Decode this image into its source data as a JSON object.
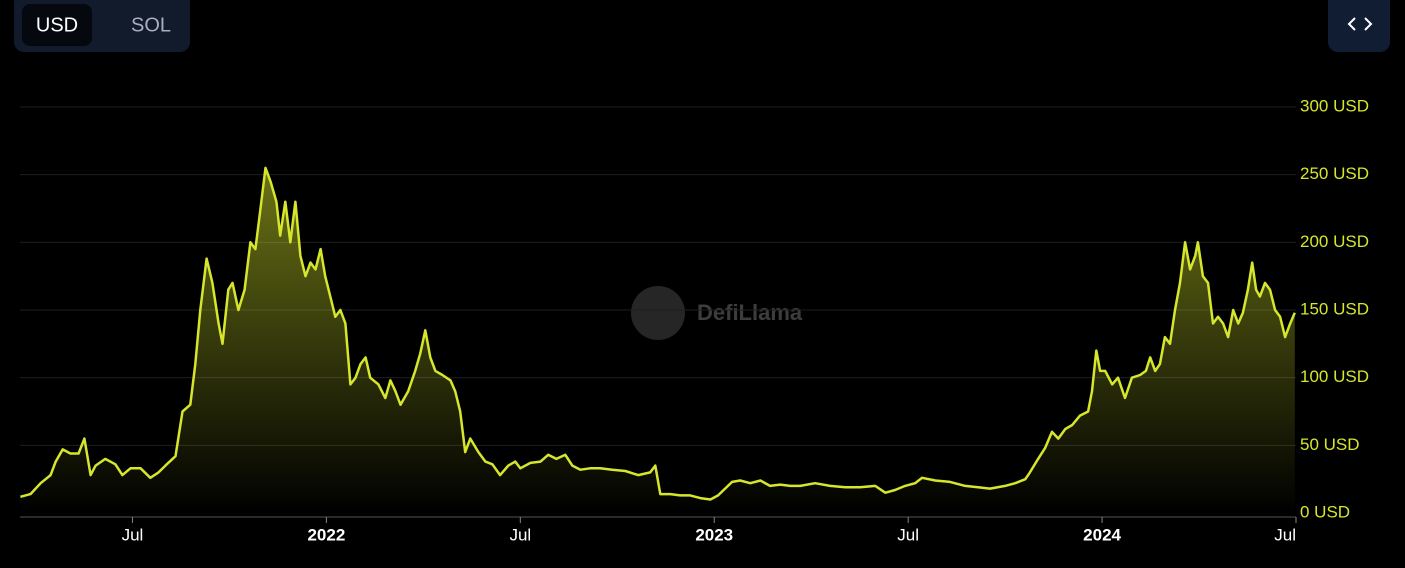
{
  "controls": {
    "currency_options": [
      "USD",
      "SOL"
    ],
    "selected": 0
  },
  "chart_data": {
    "type": "line",
    "watermark": "DefiLlama",
    "color": "#d6e62c",
    "grid": true,
    "xlim": [
      2021.21,
      2024.5
    ],
    "xticks": [
      {
        "value": 2021.5,
        "label": "Jul"
      },
      2022,
      {
        "value": 2022.5,
        "label": "Jul"
      },
      2023,
      {
        "value": 2023.5,
        "label": "Jul"
      },
      2024,
      {
        "value": 2024.5,
        "label": "Jul"
      }
    ],
    "ylim": [
      0,
      300
    ],
    "yticks": [
      {
        "value": 0,
        "label": "0 USD"
      },
      {
        "value": 50,
        "label": "50 USD"
      },
      {
        "value": 100,
        "label": "100 USD"
      },
      {
        "value": 150,
        "label": "150 USD"
      },
      {
        "value": 200,
        "label": "200 USD"
      },
      {
        "value": 250,
        "label": "250 USD"
      },
      {
        "value": 300,
        "label": "300 USD"
      }
    ],
    "x": [
      2021.211,
      2021.237,
      2021.263,
      2021.289,
      2021.302,
      2021.32,
      2021.34,
      2021.361,
      2021.376,
      2021.392,
      2021.405,
      2021.43,
      2021.456,
      2021.474,
      2021.495,
      2021.521,
      2021.546,
      2021.567,
      2021.585,
      2021.611,
      2021.629,
      2021.649,
      2021.662,
      2021.675,
      2021.691,
      2021.706,
      2021.722,
      2021.732,
      2021.747,
      2021.758,
      2021.773,
      2021.789,
      2021.804,
      2021.817,
      2021.83,
      2021.843,
      2021.856,
      2021.871,
      2021.881,
      2021.894,
      2021.907,
      2021.92,
      2021.933,
      2021.946,
      2021.959,
      2021.972,
      2021.985,
      2021.997,
      2022.01,
      2022.023,
      2022.036,
      2022.049,
      2022.062,
      2022.075,
      2022.088,
      2022.101,
      2022.113,
      2022.134,
      2022.152,
      2022.165,
      2022.178,
      2022.191,
      2022.211,
      2022.229,
      2022.242,
      2022.255,
      2022.268,
      2022.281,
      2022.299,
      2022.32,
      2022.332,
      2022.345,
      2022.358,
      2022.371,
      2022.392,
      2022.41,
      2022.428,
      2022.448,
      2022.469,
      2022.487,
      2022.5,
      2022.526,
      2022.552,
      2022.572,
      2022.593,
      2022.616,
      2022.634,
      2022.655,
      2022.68,
      2022.706,
      2022.737,
      2022.771,
      2022.804,
      2022.835,
      2022.848,
      2022.861,
      2022.887,
      2022.912,
      2022.938,
      2022.964,
      2022.99,
      2023.01,
      2023.028,
      2023.046,
      2023.067,
      2023.093,
      2023.119,
      2023.144,
      2023.17,
      2023.196,
      2023.222,
      2023.26,
      2023.299,
      2023.338,
      2023.376,
      2023.415,
      2023.441,
      2023.466,
      2023.492,
      2023.518,
      2023.536,
      2023.57,
      2023.608,
      2023.647,
      2023.68,
      2023.711,
      2023.75,
      2023.776,
      2023.802,
      2023.814,
      2023.835,
      2023.853,
      2023.871,
      2023.887,
      2023.905,
      2023.923,
      2023.943,
      2023.964,
      2023.974,
      2023.985,
      2023.995,
      2024.008,
      2024.026,
      2024.041,
      2024.059,
      2024.077,
      2024.098,
      2024.113,
      2024.124,
      2024.137,
      2024.149,
      2024.162,
      2024.175,
      2024.188,
      2024.201,
      2024.214,
      2024.227,
      2024.24,
      2024.247,
      2024.26,
      2024.273,
      2024.286,
      2024.299,
      2024.312,
      2024.325,
      2024.338,
      2024.351,
      2024.363,
      2024.376,
      2024.387,
      2024.397,
      2024.407,
      2024.42,
      2024.433,
      2024.446,
      2024.459,
      2024.472,
      2024.485,
      2024.497
    ],
    "values": [
      12,
      14,
      22,
      28,
      38,
      47,
      44,
      44,
      55,
      28,
      35,
      40,
      36,
      28,
      33,
      33,
      26,
      30,
      35,
      42,
      75,
      80,
      110,
      150,
      188,
      170,
      140,
      125,
      165,
      170,
      150,
      165,
      200,
      195,
      225,
      255,
      245,
      230,
      205,
      230,
      200,
      230,
      190,
      175,
      185,
      180,
      195,
      175,
      160,
      145,
      150,
      140,
      95,
      100,
      110,
      115,
      100,
      95,
      85,
      98,
      90,
      80,
      90,
      105,
      118,
      135,
      115,
      105,
      102,
      98,
      90,
      75,
      45,
      55,
      45,
      38,
      36,
      28,
      35,
      38,
      33,
      37,
      38,
      43,
      40,
      43,
      35,
      32,
      33,
      33,
      32,
      31,
      28,
      30,
      35,
      14,
      14,
      13,
      13,
      11,
      10,
      13,
      18,
      23,
      24,
      22,
      24,
      20,
      21,
      20,
      20,
      22,
      20,
      19,
      19,
      20,
      15,
      17,
      20,
      22,
      26,
      24,
      23,
      20,
      19,
      18,
      20,
      22,
      25,
      30,
      40,
      48,
      60,
      55,
      62,
      65,
      72,
      75,
      90,
      120,
      105,
      105,
      95,
      100,
      85,
      100,
      102,
      105,
      115,
      105,
      110,
      130,
      125,
      150,
      170,
      200,
      180,
      190,
      200,
      175,
      170,
      140,
      145,
      140,
      130,
      150,
      140,
      148,
      165,
      185,
      165,
      160,
      170,
      165,
      150,
      145,
      130,
      140,
      148
    ]
  }
}
